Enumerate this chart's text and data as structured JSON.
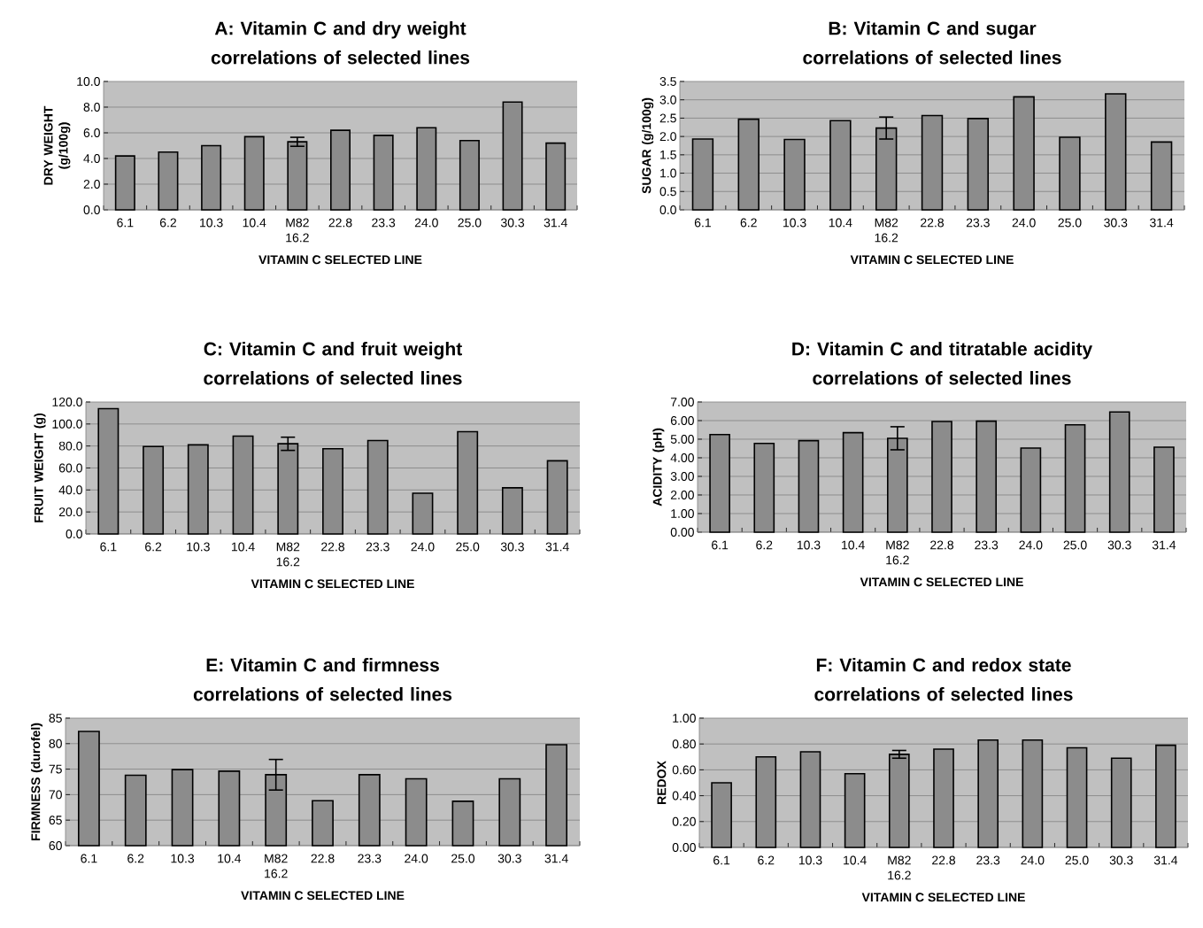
{
  "chart_data": [
    {
      "type": "bar",
      "title": "A: Vitamin C and dry weight correlations of selected lines",
      "xlabel": "VITAMIN C SELECTED LINE",
      "ylabel": "DRY WEIGHT (g/100g)",
      "categories": [
        "6.1",
        "6.2",
        "10.3",
        "10.4",
        "M82 16.2",
        "22.8",
        "23.3",
        "24.0",
        "25.0",
        "30.3",
        "31.4"
      ],
      "values": [
        4.2,
        4.5,
        5.0,
        5.7,
        5.3,
        6.2,
        5.8,
        6.4,
        5.4,
        8.4,
        5.2
      ],
      "errors": [
        null,
        null,
        null,
        null,
        0.35,
        null,
        null,
        null,
        null,
        null,
        null
      ],
      "color": "#8c8c8c",
      "ylim": [
        0,
        10
      ],
      "yticks": [
        {
          "value": 0,
          "label": "0.0"
        },
        {
          "value": 2,
          "label": "2.0"
        },
        {
          "value": 4,
          "label": "4.0"
        },
        {
          "value": 6,
          "label": "6.0"
        },
        {
          "value": 8,
          "label": "8.0"
        },
        {
          "value": 10,
          "label": "10.0"
        }
      ],
      "grid": "y"
    },
    {
      "type": "bar",
      "title": "B: Vitamin C and sugar correlations of selected lines",
      "xlabel": "VITAMIN C SELECTED LINE",
      "ylabel": "SUGAR (g/100g)",
      "categories": [
        "6.1",
        "6.2",
        "10.3",
        "10.4",
        "M82 16.2",
        "22.8",
        "23.3",
        "24.0",
        "25.0",
        "30.3",
        "31.4"
      ],
      "values": [
        1.93,
        2.47,
        1.92,
        2.43,
        2.23,
        2.57,
        2.49,
        3.08,
        1.98,
        3.16,
        1.85
      ],
      "errors": [
        null,
        null,
        null,
        null,
        0.3,
        null,
        null,
        null,
        null,
        null,
        null
      ],
      "color": "#8c8c8c",
      "ylim": [
        0,
        3.5
      ],
      "yticks": [
        {
          "value": 0,
          "label": "0.0"
        },
        {
          "value": 0.5,
          "label": "0.5"
        },
        {
          "value": 1,
          "label": "1.0"
        },
        {
          "value": 1.5,
          "label": "1.5"
        },
        {
          "value": 2,
          "label": "2.0"
        },
        {
          "value": 2.5,
          "label": "2.5"
        },
        {
          "value": 3,
          "label": "3.0"
        },
        {
          "value": 3.5,
          "label": "3.5"
        }
      ],
      "grid": "y"
    },
    {
      "type": "bar",
      "title": "C: Vitamin C and fruit weight correlations of selected lines",
      "xlabel": "VITAMIN C SELECTED LINE",
      "ylabel": "FRUIT WEIGHT (g)",
      "categories": [
        "6.1",
        "6.2",
        "10.3",
        "10.4",
        "M82 16.2",
        "22.8",
        "23.3",
        "24.0",
        "25.0",
        "30.3",
        "31.4"
      ],
      "values": [
        114,
        79.5,
        81,
        89,
        82,
        77.5,
        85,
        37,
        93,
        42,
        66.5
      ],
      "errors": [
        null,
        null,
        null,
        null,
        6,
        null,
        null,
        null,
        null,
        null,
        null
      ],
      "color": "#8c8c8c",
      "ylim": [
        0,
        120
      ],
      "yticks": [
        {
          "value": 0,
          "label": "0.0"
        },
        {
          "value": 20,
          "label": "20.0"
        },
        {
          "value": 40,
          "label": "40.0"
        },
        {
          "value": 60,
          "label": "60.0"
        },
        {
          "value": 80,
          "label": "80.0"
        },
        {
          "value": 100,
          "label": "100.0"
        },
        {
          "value": 120,
          "label": "120.0"
        }
      ],
      "grid": "y"
    },
    {
      "type": "bar",
      "title": "D: Vitamin C and titratable acidity correlations of selected lines",
      "xlabel": "VITAMIN C SELECTED LINE",
      "ylabel": "ACIDITY (pH)",
      "categories": [
        "6.1",
        "6.2",
        "10.3",
        "10.4",
        "M82 16.2",
        "22.8",
        "23.3",
        "24.0",
        "25.0",
        "30.3",
        "31.4"
      ],
      "values": [
        5.25,
        4.77,
        4.92,
        5.35,
        5.05,
        5.95,
        5.97,
        4.52,
        5.77,
        6.46,
        4.57
      ],
      "errors": [
        null,
        null,
        null,
        null,
        0.62,
        null,
        null,
        null,
        null,
        null,
        null
      ],
      "color": "#8c8c8c",
      "ylim": [
        0,
        7
      ],
      "yticks": [
        {
          "value": 0,
          "label": "0.00"
        },
        {
          "value": 1,
          "label": "1.00"
        },
        {
          "value": 2,
          "label": "2.00"
        },
        {
          "value": 3,
          "label": "3.00"
        },
        {
          "value": 4,
          "label": "4.00"
        },
        {
          "value": 5,
          "label": "5.00"
        },
        {
          "value": 6,
          "label": "6.00"
        },
        {
          "value": 7,
          "label": "7.00"
        }
      ],
      "grid": "y"
    },
    {
      "type": "bar",
      "title": "E: Vitamin C and firmness correlations of selected lines",
      "xlabel": "VITAMIN C SELECTED LINE",
      "ylabel": "FIRMNESS (durofel)",
      "categories": [
        "6.1",
        "6.2",
        "10.3",
        "10.4",
        "M82 16.2",
        "22.8",
        "23.3",
        "24.0",
        "25.0",
        "30.3",
        "31.4"
      ],
      "values": [
        82.4,
        73.8,
        74.9,
        74.6,
        73.9,
        68.8,
        73.9,
        73.1,
        68.7,
        73.1,
        79.8
      ],
      "errors": [
        null,
        null,
        null,
        null,
        3.0,
        null,
        null,
        null,
        null,
        null,
        null
      ],
      "color": "#8c8c8c",
      "ylim": [
        60,
        85
      ],
      "yticks": [
        60,
        65,
        70,
        75,
        80,
        85
      ],
      "grid": "y"
    },
    {
      "type": "bar",
      "title": "F: Vitamin C and redox state correlations of selected lines",
      "xlabel": "VITAMIN C SELECTED LINE",
      "ylabel": "REDOX",
      "categories": [
        "6.1",
        "6.2",
        "10.3",
        "10.4",
        "M82 16.2",
        "22.8",
        "23.3",
        "24.0",
        "25.0",
        "30.3",
        "31.4"
      ],
      "values": [
        0.5,
        0.7,
        0.74,
        0.57,
        0.72,
        0.76,
        0.83,
        0.83,
        0.77,
        0.69,
        0.79
      ],
      "errors": [
        null,
        null,
        null,
        null,
        0.03,
        null,
        null,
        null,
        null,
        null,
        null
      ],
      "color": "#8c8c8c",
      "ylim": [
        0,
        1
      ],
      "yticks": [
        {
          "value": 0,
          "label": "0.00"
        },
        {
          "value": 0.2,
          "label": "0.20"
        },
        {
          "value": 0.4,
          "label": "0.40"
        },
        {
          "value": 0.6,
          "label": "0.60"
        },
        {
          "value": 0.8,
          "label": "0.80"
        },
        {
          "value": 1,
          "label": "1.00"
        }
      ],
      "grid": "y"
    }
  ]
}
